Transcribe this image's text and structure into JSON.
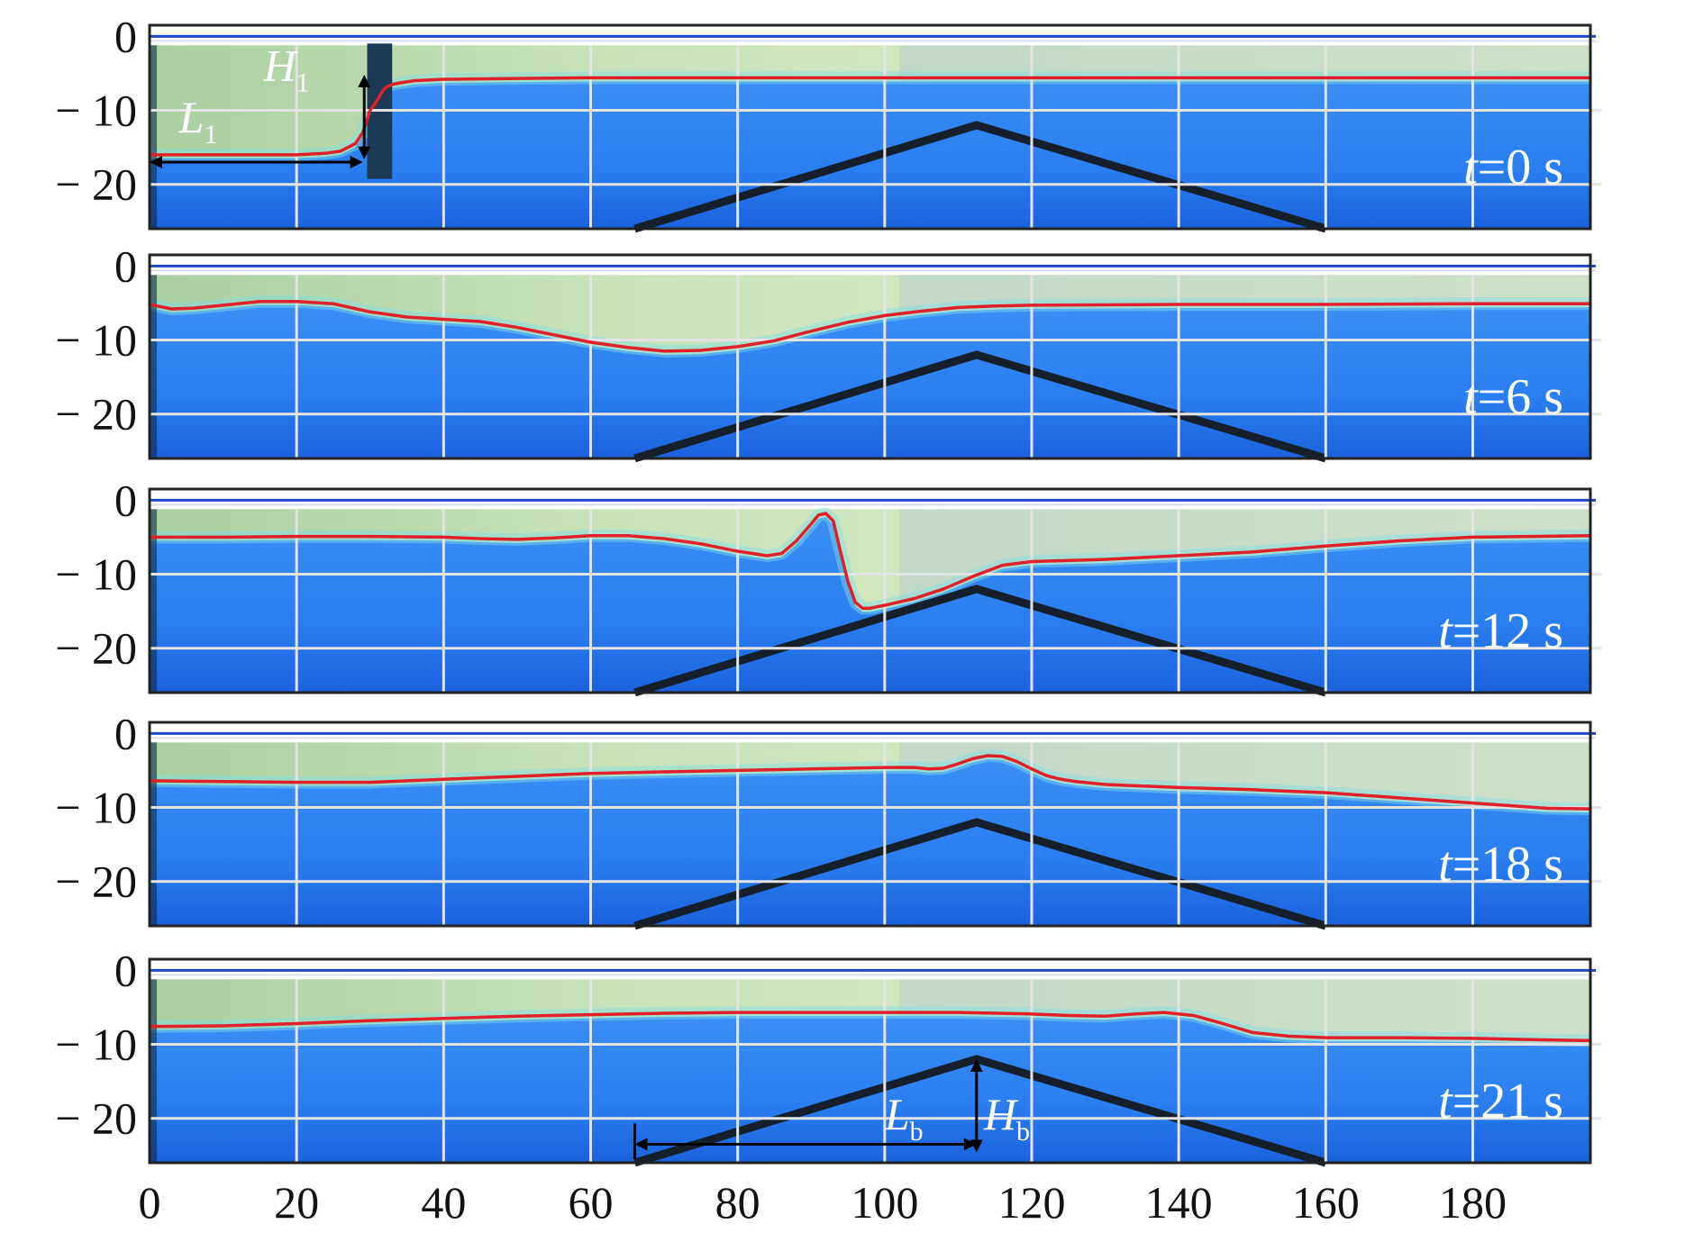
{
  "figure": {
    "x_tick_labels": [
      "0",
      "20",
      "40",
      "60",
      "80",
      "100",
      "120",
      "140",
      "160",
      "180"
    ],
    "y_tick_labels": [
      "0",
      "− 10",
      "− 20"
    ],
    "annotations": {
      "H1": {
        "main": "H",
        "sub": "1"
      },
      "L1": {
        "main": "L",
        "sub": "1"
      },
      "Lb": {
        "main": "L",
        "sub": "b"
      },
      "Hb": {
        "main": "H",
        "sub": "b"
      }
    }
  },
  "colors": {
    "light_fluid": "#c6dfbd",
    "dense_fluid": "#2f86f3",
    "dense_fluid_deep": "#1c6be0",
    "interface_line": "#e0202a",
    "surface_line": "#1e46c8",
    "grid": "#e3e3e3",
    "obstacle": "#16202c",
    "frame": "#222222"
  },
  "chart_data": [
    {
      "type": "line",
      "time_label": "t=0 s",
      "xlim": [
        0,
        196
      ],
      "ylim": [
        -26,
        1.5
      ],
      "x_ticks": [
        0,
        20,
        40,
        60,
        80,
        100,
        120,
        140,
        160,
        180
      ],
      "y_ticks": [
        0,
        -10,
        -20
      ],
      "surface_level": 0,
      "obstacle": {
        "x": [
          66,
          112.5,
          160
        ],
        "y": [
          -26,
          -12,
          -26
        ]
      },
      "series": [
        {
          "x": [
            0,
            4,
            8,
            12,
            16,
            20,
            24,
            26,
            28,
            29,
            30,
            31,
            31.5,
            32,
            33,
            34,
            36,
            40,
            50,
            60,
            80,
            100,
            120,
            140,
            160,
            180,
            196
          ],
          "y": [
            -16,
            -16,
            -16,
            -16,
            -16,
            -16,
            -15.8,
            -15.5,
            -14.5,
            -13,
            -10,
            -8.6,
            -7.7,
            -7,
            -6.5,
            -6.3,
            -6,
            -5.8,
            -5.7,
            -5.6,
            -5.6,
            -5.6,
            -5.6,
            -5.6,
            -5.6,
            -5.6,
            -5.6
          ]
        }
      ]
    },
    {
      "type": "line",
      "time_label": "t=6 s",
      "xlim": [
        0,
        196
      ],
      "ylim": [
        -26,
        1.5
      ],
      "x_ticks": [
        0,
        20,
        40,
        60,
        80,
        100,
        120,
        140,
        160,
        180
      ],
      "y_ticks": [
        0,
        -10,
        -20
      ],
      "surface_level": 0,
      "obstacle": {
        "x": [
          66,
          112.5,
          160
        ],
        "y": [
          -26,
          -12,
          -26
        ]
      },
      "series": [
        {
          "x": [
            0,
            3,
            6,
            10,
            15,
            20,
            25,
            30,
            35,
            40,
            45,
            50,
            55,
            60,
            65,
            70,
            75,
            80,
            85,
            90,
            95,
            100,
            105,
            110,
            115,
            120,
            140,
            160,
            180,
            196
          ],
          "y": [
            -5.2,
            -5.8,
            -5.7,
            -5.3,
            -4.8,
            -4.8,
            -5.1,
            -6.2,
            -6.9,
            -7.2,
            -7.5,
            -8.3,
            -9.3,
            -10.3,
            -11,
            -11.5,
            -11.4,
            -10.9,
            -10.1,
            -8.8,
            -7.6,
            -6.7,
            -6.1,
            -5.6,
            -5.4,
            -5.3,
            -5.2,
            -5.2,
            -5.1,
            -5.1
          ]
        }
      ]
    },
    {
      "type": "line",
      "time_label": "t=12 s",
      "xlim": [
        0,
        196
      ],
      "ylim": [
        -26,
        1.5
      ],
      "x_ticks": [
        0,
        20,
        40,
        60,
        80,
        100,
        120,
        140,
        160,
        180
      ],
      "y_ticks": [
        0,
        -10,
        -20
      ],
      "surface_level": 0,
      "obstacle": {
        "x": [
          66,
          112.5,
          160
        ],
        "y": [
          -26,
          -12,
          -26
        ]
      },
      "series": [
        {
          "x": [
            0,
            10,
            20,
            30,
            40,
            45,
            50,
            55,
            60,
            65,
            70,
            75,
            80,
            84,
            86,
            88,
            90,
            91,
            92,
            93,
            94,
            95,
            96,
            97,
            98,
            100,
            104,
            108,
            112,
            116,
            120,
            130,
            140,
            150,
            160,
            170,
            180,
            196
          ],
          "y": [
            -5,
            -5,
            -4.9,
            -4.9,
            -5,
            -5.2,
            -5.3,
            -5.1,
            -4.8,
            -4.8,
            -5.2,
            -5.9,
            -6.9,
            -7.5,
            -7.2,
            -5.5,
            -3.2,
            -2,
            -1.8,
            -2.8,
            -7,
            -11,
            -13.8,
            -14.6,
            -14.6,
            -14.2,
            -13.3,
            -12,
            -10.3,
            -8.8,
            -8.3,
            -8,
            -7.5,
            -7,
            -6.2,
            -5.5,
            -5,
            -4.8
          ]
        }
      ]
    },
    {
      "type": "line",
      "time_label": "t=18 s",
      "xlim": [
        0,
        196
      ],
      "ylim": [
        -26,
        1.5
      ],
      "x_ticks": [
        0,
        20,
        40,
        60,
        80,
        100,
        120,
        140,
        160,
        180
      ],
      "y_ticks": [
        0,
        -10,
        -20
      ],
      "surface_level": 0,
      "obstacle": {
        "x": [
          66,
          112.5,
          160
        ],
        "y": [
          -26,
          -12,
          -26
        ]
      },
      "series": [
        {
          "x": [
            0,
            10,
            20,
            30,
            40,
            50,
            60,
            70,
            80,
            90,
            100,
            104,
            106,
            108,
            110,
            112,
            114,
            116,
            118,
            120,
            122,
            124,
            126,
            130,
            140,
            150,
            160,
            170,
            180,
            190,
            196
          ],
          "y": [
            -6.4,
            -6.5,
            -6.6,
            -6.6,
            -6.2,
            -5.8,
            -5.4,
            -5.2,
            -5,
            -4.8,
            -4.6,
            -4.6,
            -4.8,
            -4.7,
            -4.1,
            -3.4,
            -3,
            -3.1,
            -3.8,
            -4.8,
            -5.7,
            -6.2,
            -6.5,
            -6.9,
            -7.3,
            -7.6,
            -8,
            -8.7,
            -9.4,
            -10.1,
            -10.2
          ]
        }
      ]
    },
    {
      "type": "line",
      "time_label": "t=21 s",
      "xlim": [
        0,
        196
      ],
      "ylim": [
        -26,
        1.5
      ],
      "x_ticks": [
        0,
        20,
        40,
        60,
        80,
        100,
        120,
        140,
        160,
        180
      ],
      "y_ticks": [
        0,
        -10,
        -20
      ],
      "surface_level": 0,
      "obstacle": {
        "x": [
          66,
          112.5,
          160
        ],
        "y": [
          -26,
          -12,
          -26
        ]
      },
      "series": [
        {
          "x": [
            0,
            10,
            20,
            30,
            40,
            50,
            60,
            70,
            80,
            90,
            100,
            110,
            120,
            125,
            130,
            134,
            138,
            142,
            146,
            150,
            155,
            160,
            170,
            180,
            190,
            196
          ],
          "y": [
            -7.6,
            -7.5,
            -7.2,
            -6.8,
            -6.5,
            -6.2,
            -6,
            -5.8,
            -5.7,
            -5.7,
            -5.7,
            -5.7,
            -5.9,
            -6.1,
            -6.2,
            -5.9,
            -5.7,
            -6.1,
            -7.2,
            -8.4,
            -8.9,
            -9.1,
            -9.1,
            -9.2,
            -9.4,
            -9.5
          ]
        }
      ]
    }
  ]
}
